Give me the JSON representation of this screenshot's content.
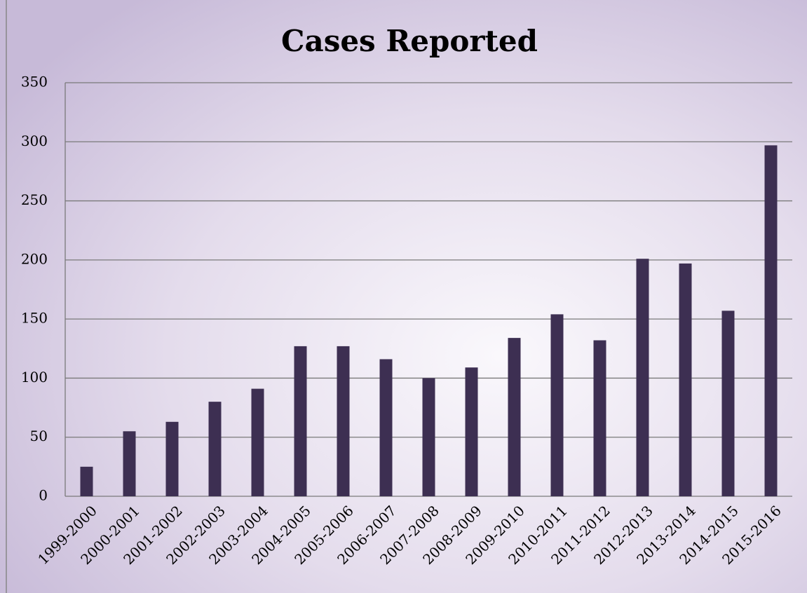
{
  "chart_data": {
    "type": "bar",
    "title": "Cases Reported",
    "categories": [
      "1999-2000",
      "2000-2001",
      "2001-2002",
      "2002-2003",
      "2003-2004",
      "2004-2005",
      "2005-2006",
      "2006-2007",
      "2007-2008",
      "2008-2009",
      "2009-2010",
      "2010-2011",
      "2011-2012",
      "2012-2013",
      "2013-2014",
      "2014-2015",
      "2015-2016"
    ],
    "values": [
      25,
      55,
      63,
      80,
      91,
      127,
      127,
      116,
      100,
      109,
      134,
      154,
      132,
      201,
      197,
      157,
      297
    ],
    "color": "#3d2f52",
    "ylim": [
      0,
      350
    ],
    "yticks": [
      0,
      50,
      100,
      150,
      200,
      250,
      300,
      350
    ],
    "grid": true
  }
}
